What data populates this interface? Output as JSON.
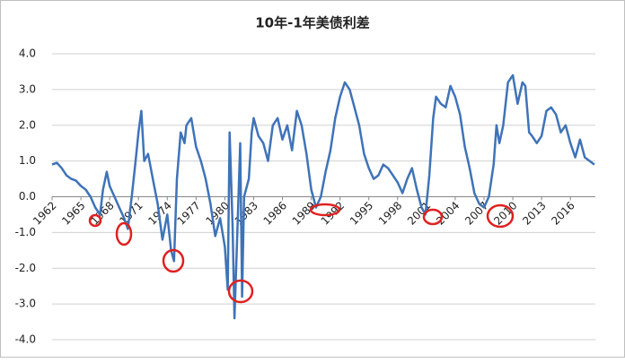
{
  "chart_data": {
    "type": "line",
    "title": "10年-1年美债利差",
    "x": [
      1962.0,
      1962.5,
      1963.0,
      1963.5,
      1964.0,
      1964.5,
      1965.0,
      1965.5,
      1966.0,
      1966.5,
      1967.0,
      1967.3,
      1967.7,
      1968.0,
      1968.5,
      1969.0,
      1969.5,
      1969.9,
      1970.3,
      1970.7,
      1971.0,
      1971.3,
      1971.6,
      1972.0,
      1972.5,
      1973.0,
      1973.5,
      1974.0,
      1974.4,
      1974.7,
      1975.0,
      1975.4,
      1975.8,
      1976.0,
      1976.5,
      1977.0,
      1977.5,
      1978.0,
      1978.5,
      1979.0,
      1979.5,
      1980.0,
      1980.3,
      1980.5,
      1980.8,
      1981.0,
      1981.3,
      1981.6,
      1981.8,
      1982.0,
      1982.5,
      1982.8,
      1983.0,
      1983.5,
      1984.0,
      1984.5,
      1985.0,
      1985.5,
      1986.0,
      1986.5,
      1987.0,
      1987.5,
      1988.0,
      1988.5,
      1989.0,
      1989.5,
      1990.0,
      1990.5,
      1991.0,
      1991.5,
      1992.0,
      1992.5,
      1993.0,
      1993.5,
      1994.0,
      1994.5,
      1995.0,
      1995.5,
      1996.0,
      1996.5,
      1997.0,
      1997.5,
      1998.0,
      1998.5,
      1999.0,
      1999.5,
      2000.0,
      2000.5,
      2000.9,
      2001.3,
      2001.7,
      2002.0,
      2002.5,
      2003.0,
      2003.5,
      2004.0,
      2004.5,
      2005.0,
      2005.5,
      2006.0,
      2006.5,
      2007.0,
      2007.5,
      2008.0,
      2008.3,
      2008.6,
      2009.0,
      2009.5,
      2010.0,
      2010.5,
      2011.0,
      2011.3,
      2011.7,
      2012.0,
      2012.5,
      2013.0,
      2013.5,
      2014.0,
      2014.5,
      2015.0,
      2015.5,
      2016.0,
      2016.5,
      2017.0,
      2017.5,
      2018.0,
      2018.5
    ],
    "series": [
      {
        "color": "#3f73b8",
        "values": [
          0.9,
          0.95,
          0.8,
          0.6,
          0.5,
          0.45,
          0.3,
          0.2,
          0.0,
          -0.3,
          -0.5,
          0.2,
          0.7,
          0.3,
          0.0,
          -0.3,
          -0.6,
          -0.9,
          0.0,
          1.0,
          1.8,
          2.4,
          1.0,
          1.2,
          0.5,
          -0.2,
          -1.2,
          -0.5,
          -1.5,
          -1.8,
          0.5,
          1.8,
          1.5,
          2.0,
          2.2,
          1.4,
          1.0,
          0.5,
          -0.2,
          -1.1,
          -0.6,
          -1.4,
          -2.6,
          1.8,
          -0.8,
          -3.4,
          -1.0,
          1.5,
          -2.8,
          0.0,
          0.5,
          1.8,
          2.2,
          1.7,
          1.5,
          1.0,
          2.0,
          2.2,
          1.6,
          2.0,
          1.3,
          2.4,
          2.0,
          1.2,
          0.2,
          -0.3,
          0.0,
          0.7,
          1.3,
          2.2,
          2.8,
          3.2,
          3.0,
          2.5,
          2.0,
          1.2,
          0.8,
          0.5,
          0.6,
          0.9,
          0.8,
          0.6,
          0.4,
          0.1,
          0.5,
          0.8,
          0.2,
          -0.3,
          -0.5,
          0.6,
          2.2,
          2.8,
          2.6,
          2.5,
          3.1,
          2.8,
          2.3,
          1.4,
          0.8,
          0.1,
          -0.2,
          -0.3,
          0.0,
          0.9,
          2.0,
          1.5,
          2.0,
          3.2,
          3.4,
          2.6,
          3.2,
          3.1,
          1.8,
          1.7,
          1.5,
          1.7,
          2.4,
          2.5,
          2.3,
          1.8,
          2.0,
          1.5,
          1.1,
          1.6,
          1.1,
          1.0,
          0.9
        ]
      }
    ],
    "xlim": [
      1962,
      2018.6
    ],
    "xticks": [
      1962,
      1965,
      1968,
      1971,
      1974,
      1977,
      1980,
      1983,
      1986,
      1989,
      1992,
      1995,
      1998,
      2001,
      2004,
      2007,
      2010,
      2013,
      2016
    ],
    "ylim": [
      -4,
      4
    ],
    "yticks": [
      {
        "value": -4,
        "label": "-4.0"
      },
      {
        "value": -3,
        "label": "-3.0"
      },
      {
        "value": -2,
        "label": "-2.0"
      },
      {
        "value": -1,
        "label": "-1.0"
      },
      {
        "value": 0,
        "label": "0.0"
      },
      {
        "value": 1,
        "label": "1.0"
      },
      {
        "value": 2,
        "label": "2.0"
      },
      {
        "value": 3,
        "label": "3.0"
      },
      {
        "value": 4,
        "label": "4.0"
      }
    ],
    "grid": true
  }
}
